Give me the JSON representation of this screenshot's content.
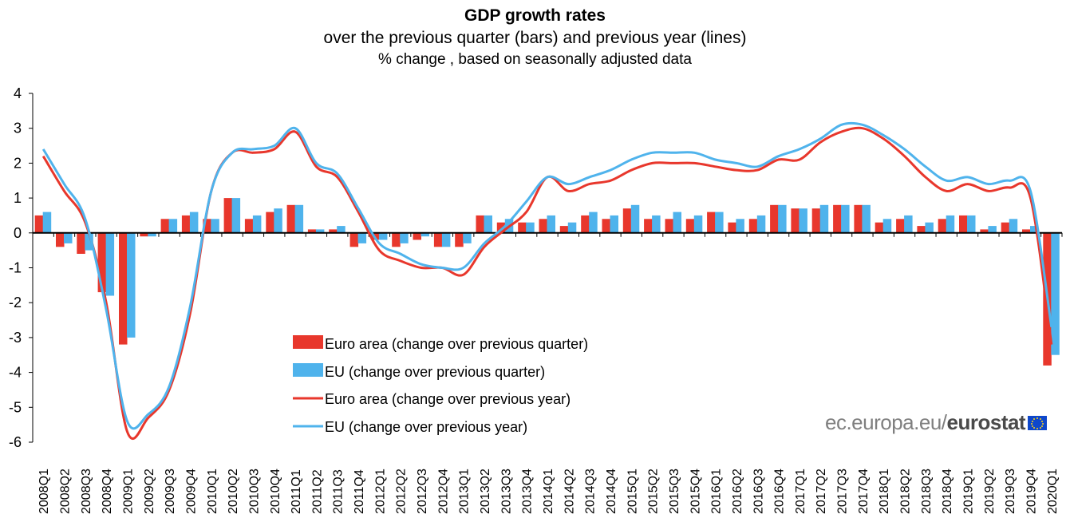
{
  "chart_data": {
    "type": "bar",
    "title": "GDP growth rates",
    "subtitle": "over the previous quarter (bars) and previous year (lines)",
    "subtitle2": "% change , based on seasonally adjusted data",
    "xlabel": "",
    "ylabel": "",
    "ylim": [
      -6,
      4
    ],
    "yticks": [
      4,
      3,
      2,
      1,
      0,
      -1,
      -2,
      -3,
      -4,
      -5,
      -6
    ],
    "grid": false,
    "legend_position": "bottom-center",
    "categories": [
      "2008Q1",
      "2008Q2",
      "2008Q3",
      "2008Q4",
      "2009Q1",
      "2009Q2",
      "2009Q3",
      "2009Q4",
      "2010Q1",
      "2010Q2",
      "2010Q3",
      "2010Q4",
      "2011Q1",
      "2011Q2",
      "2011Q3",
      "2011Q4",
      "2012Q1",
      "2012Q2",
      "2012Q3",
      "2012Q4",
      "2013Q1",
      "2013Q2",
      "2013Q3",
      "2013Q4",
      "2014Q1",
      "2014Q2",
      "2014Q3",
      "2014Q4",
      "2015Q1",
      "2015Q2",
      "2015Q3",
      "2015Q4",
      "2016Q1",
      "2016Q2",
      "2016Q3",
      "2016Q4",
      "2017Q1",
      "2017Q2",
      "2017Q3",
      "2017Q4",
      "2018Q1",
      "2018Q2",
      "2018Q3",
      "2018Q4",
      "2019Q1",
      "2019Q2",
      "2019Q3",
      "2019Q4",
      "2020Q1"
    ],
    "series": [
      {
        "name": "Euro area (change over previous quarter)",
        "kind": "bar",
        "color": "#e8372c",
        "values": [
          0.5,
          -0.4,
          -0.6,
          -1.7,
          -3.2,
          -0.1,
          0.4,
          0.5,
          0.4,
          1.0,
          0.4,
          0.6,
          0.8,
          0.1,
          0.1,
          -0.4,
          -0.2,
          -0.4,
          -0.2,
          -0.4,
          -0.4,
          0.5,
          0.3,
          0.3,
          0.4,
          0.2,
          0.5,
          0.4,
          0.7,
          0.4,
          0.4,
          0.4,
          0.6,
          0.3,
          0.4,
          0.8,
          0.7,
          0.7,
          0.8,
          0.8,
          0.3,
          0.4,
          0.2,
          0.4,
          0.5,
          0.1,
          0.3,
          0.1,
          -3.8
        ]
      },
      {
        "name": "EU (change over previous quarter)",
        "kind": "bar",
        "color": "#4fb3ec",
        "values": [
          0.6,
          -0.3,
          -0.5,
          -1.8,
          -3.0,
          -0.1,
          0.4,
          0.6,
          0.4,
          1.0,
          0.5,
          0.7,
          0.8,
          0.1,
          0.2,
          -0.3,
          -0.2,
          -0.3,
          -0.1,
          -0.4,
          -0.3,
          0.5,
          0.4,
          0.3,
          0.5,
          0.3,
          0.6,
          0.5,
          0.8,
          0.5,
          0.6,
          0.5,
          0.6,
          0.4,
          0.5,
          0.8,
          0.7,
          0.8,
          0.8,
          0.8,
          0.4,
          0.5,
          0.3,
          0.5,
          0.5,
          0.2,
          0.4,
          0.2,
          -3.5
        ]
      },
      {
        "name": "Euro area (change over previous year)",
        "kind": "line",
        "color": "#e8372c",
        "values": [
          2.2,
          1.2,
          0.3,
          -2.0,
          -5.7,
          -5.3,
          -4.5,
          -2.3,
          1.2,
          2.3,
          2.3,
          2.4,
          2.9,
          1.9,
          1.6,
          0.6,
          -0.5,
          -0.8,
          -1.0,
          -1.0,
          -1.2,
          -0.4,
          0.1,
          0.6,
          1.6,
          1.2,
          1.4,
          1.5,
          1.8,
          2.0,
          2.0,
          2.0,
          1.9,
          1.8,
          1.8,
          2.1,
          2.1,
          2.6,
          2.9,
          3.0,
          2.7,
          2.2,
          1.6,
          1.2,
          1.4,
          1.2,
          1.3,
          1.0,
          -3.2
        ]
      },
      {
        "name": "EU (change over previous year)",
        "kind": "line",
        "color": "#4fb3ec",
        "values": [
          2.4,
          1.4,
          0.4,
          -2.2,
          -5.4,
          -5.2,
          -4.4,
          -2.1,
          1.2,
          2.3,
          2.4,
          2.5,
          3.0,
          2.0,
          1.7,
          0.7,
          -0.3,
          -0.6,
          -0.9,
          -1.0,
          -1.0,
          -0.3,
          0.2,
          0.9,
          1.6,
          1.4,
          1.6,
          1.8,
          2.1,
          2.3,
          2.3,
          2.3,
          2.1,
          2.0,
          1.9,
          2.2,
          2.4,
          2.7,
          3.1,
          3.1,
          2.8,
          2.4,
          1.9,
          1.5,
          1.6,
          1.4,
          1.5,
          1.2,
          -2.7
        ]
      }
    ],
    "legend": [
      {
        "label": "Euro area (change over previous quarter)",
        "marker": "bar",
        "color": "#e8372c"
      },
      {
        "label": "EU (change over previous quarter)",
        "marker": "bar",
        "color": "#4fb3ec"
      },
      {
        "label": "Euro area (change over previous year)",
        "marker": "line",
        "color": "#e8372c"
      },
      {
        "label": "EU (change over previous year)",
        "marker": "line",
        "color": "#4fb3ec"
      }
    ]
  },
  "branding": {
    "prefix": "ec.europa.eu/",
    "name": "eurostat",
    "logo": "eu-flag-icon"
  }
}
